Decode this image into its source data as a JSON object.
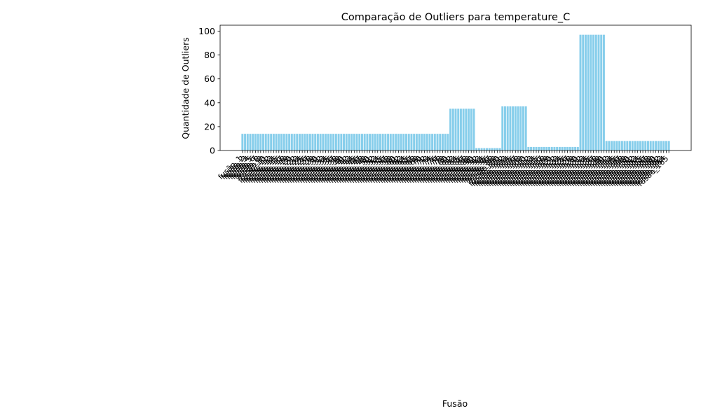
{
  "chart_data": {
    "type": "bar",
    "title": "Comparação de Outliers para temperature_C",
    "xlabel": "Fusão",
    "ylabel": "Quantidade de Outliers",
    "ylim": [
      0,
      105
    ],
    "yticks": [
      0,
      20,
      40,
      60,
      80,
      100
    ],
    "grid": false,
    "legend": "none",
    "bar_color": "#87ceeb",
    "x_label_rotation": 45,
    "x_label_prefix": "fusão_",
    "segments": [
      {
        "count": 80,
        "value": 14
      },
      {
        "count": 10,
        "value": 35
      },
      {
        "count": 10,
        "value": 2
      },
      {
        "count": 10,
        "value": 37
      },
      {
        "count": 20,
        "value": 3
      },
      {
        "count": 10,
        "value": 97
      },
      {
        "count": 25,
        "value": 8
      }
    ]
  }
}
